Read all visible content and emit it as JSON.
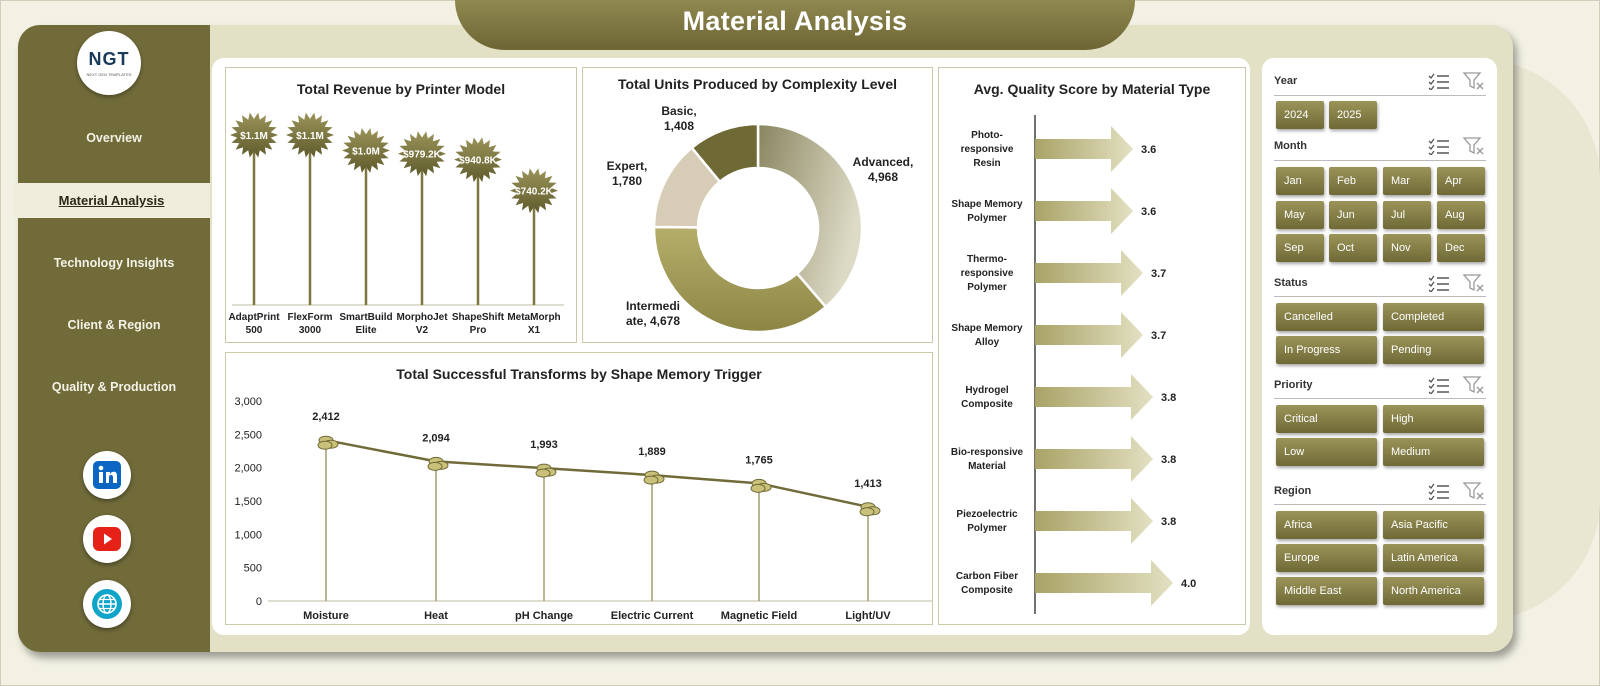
{
  "header": {
    "title": "Material Analysis"
  },
  "logo": {
    "text": "NGT",
    "tagline": "NEXT GEN TEMPLATES"
  },
  "sidebar": {
    "items": [
      {
        "label": "Overview"
      },
      {
        "label": "Material Analysis"
      },
      {
        "label": "Technology Insights"
      },
      {
        "label": "Client & Region"
      },
      {
        "label": "Quality & Production"
      }
    ],
    "social": [
      "linkedin-icon",
      "youtube-icon",
      "web-globe-icon"
    ]
  },
  "charts": {
    "revenue": {
      "title": "Total Revenue  by Printer Model",
      "type": "bar",
      "categories": [
        "AdaptPrint 500",
        "FlexForm 3000",
        "SmartBuild Elite",
        "MorphoJet V2",
        "ShapeShift Pro",
        "MetaMorph X1"
      ],
      "category_lines": [
        [
          "AdaptPrint",
          "500"
        ],
        [
          "FlexForm",
          "3000"
        ],
        [
          "SmartBuild",
          "Elite"
        ],
        [
          "MorphoJet",
          "V2"
        ],
        [
          "ShapeShift",
          "Pro"
        ],
        [
          "MetaMorph",
          "X1"
        ]
      ],
      "values": [
        1100000,
        1100000,
        1000000,
        979200,
        940800,
        740200
      ],
      "labels": [
        "$1.1M",
        "$1.1M",
        "$1.0M",
        "$979.2K",
        "$940.8K",
        "$740.2K"
      ]
    },
    "units": {
      "title": "Total Units Produced by Complexity Level",
      "type": "pie",
      "slices": [
        {
          "name": "Advanced",
          "value": 4968,
          "label": [
            "Advanced,",
            "4,968"
          ],
          "color": "#c9c6a6"
        },
        {
          "name": "Intermediate",
          "value": 4678,
          "label": [
            "Intermedi",
            "ate, 4,678"
          ],
          "color": "#a49d5a"
        },
        {
          "name": "Expert",
          "value": 1780,
          "label": [
            "Expert,",
            "1,780"
          ],
          "color": "#d7ccb6"
        },
        {
          "name": "Basic",
          "value": 1408,
          "label": [
            "Basic,",
            "1,408"
          ],
          "color": "#6f6936"
        }
      ]
    },
    "quality": {
      "title": "Avg. Quality Score by Material Type",
      "type": "bar",
      "categories": [
        "Photo-responsive Resin",
        "Shape Memory Polymer",
        "Thermo-responsive Polymer",
        "Shape Memory Alloy",
        "Hydrogel Composite",
        "Bio-responsive Material",
        "Piezoelectric Polymer",
        "Carbon Fiber Composite"
      ],
      "category_lines": [
        [
          "Photo-",
          "responsive",
          "Resin"
        ],
        [
          "Shape Memory",
          "Polymer"
        ],
        [
          "Thermo-",
          "responsive",
          "Polymer"
        ],
        [
          "Shape Memory",
          "Alloy"
        ],
        [
          "Hydrogel",
          "Composite"
        ],
        [
          "Bio-responsive",
          "Material"
        ],
        [
          "Piezoelectric",
          "Polymer"
        ],
        [
          "Carbon Fiber",
          "Composite"
        ]
      ],
      "values": [
        3.6,
        3.6,
        3.7,
        3.7,
        3.8,
        3.8,
        3.8,
        4.0
      ],
      "labels": [
        "3.6",
        "3.6",
        "3.7",
        "3.7",
        "3.8",
        "3.8",
        "3.8",
        "4.0"
      ]
    },
    "transforms": {
      "title": "Total Successful  Transforms  by Shape Memory Trigger",
      "type": "line",
      "categories": [
        "Moisture",
        "Heat",
        "pH Change",
        "Electric Current",
        "Magnetic Field",
        "Light/UV"
      ],
      "values": [
        2412,
        2094,
        1993,
        1889,
        1765,
        1413
      ],
      "labels": [
        "2,412",
        "2,094",
        "1,993",
        "1,889",
        "1,765",
        "1,413"
      ],
      "ylim": [
        0,
        3000
      ],
      "yticks": [
        "0",
        "500",
        "1,000",
        "1,500",
        "2,000",
        "2,500",
        "3,000"
      ]
    }
  },
  "chart_data": [
    {
      "type": "bar",
      "title": "Total Revenue  by Printer Model",
      "categories": [
        "AdaptPrint 500",
        "FlexForm 3000",
        "SmartBuild Elite",
        "MorphoJet V2",
        "ShapeShift Pro",
        "MetaMorph X1"
      ],
      "values": [
        1100000,
        1100000,
        1000000,
        979200,
        940800,
        740200
      ]
    },
    {
      "type": "pie",
      "title": "Total Units Produced by Complexity Level",
      "categories": [
        "Advanced",
        "Intermediate",
        "Expert",
        "Basic"
      ],
      "values": [
        4968,
        4678,
        1780,
        1408
      ]
    },
    {
      "type": "bar",
      "title": "Avg. Quality Score by Material Type",
      "categories": [
        "Photo-responsive Resin",
        "Shape Memory Polymer",
        "Thermo-responsive Polymer",
        "Shape Memory Alloy",
        "Hydrogel Composite",
        "Bio-responsive Material",
        "Piezoelectric Polymer",
        "Carbon Fiber Composite"
      ],
      "values": [
        3.6,
        3.6,
        3.7,
        3.7,
        3.8,
        3.8,
        3.8,
        4.0
      ]
    },
    {
      "type": "line",
      "title": "Total Successful  Transforms  by Shape Memory Trigger",
      "categories": [
        "Moisture",
        "Heat",
        "pH Change",
        "Electric Current",
        "Magnetic Field",
        "Light/UV"
      ],
      "values": [
        2412,
        2094,
        1993,
        1889,
        1765,
        1413
      ],
      "ylim": [
        0,
        3000
      ]
    }
  ],
  "filters": {
    "year": {
      "label": "Year",
      "options": [
        "2024",
        "2025"
      ]
    },
    "month": {
      "label": "Month",
      "options": [
        "Jan",
        "Feb",
        "Mar",
        "Apr",
        "May",
        "Jun",
        "Jul",
        "Aug",
        "Sep",
        "Oct",
        "Nov",
        "Dec"
      ]
    },
    "status": {
      "label": "Status",
      "options": [
        "Cancelled",
        "Completed",
        "In Progress",
        "Pending"
      ]
    },
    "priority": {
      "label": "Priority",
      "options": [
        "Critical",
        "High",
        "Low",
        "Medium"
      ]
    },
    "region": {
      "label": "Region",
      "options": [
        "Africa",
        "Asia Pacific",
        "Europe",
        "Latin America",
        "Middle East",
        "North America"
      ]
    }
  },
  "colors": {
    "olive_dark": "#716b3a",
    "olive_mid": "#8f8850",
    "cream": "#efeedd",
    "panel_bg": "#ffffff"
  }
}
